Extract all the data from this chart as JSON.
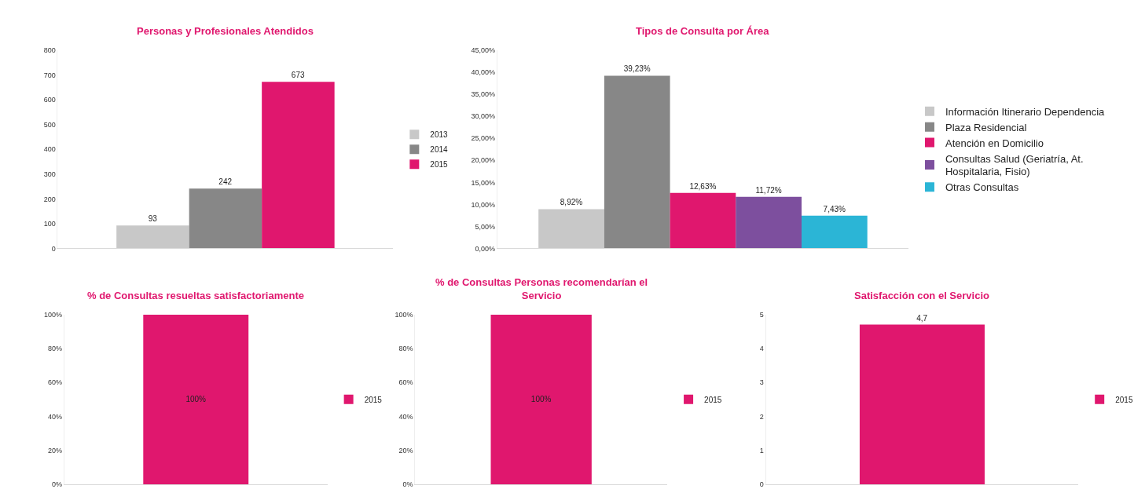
{
  "chart_data": [
    {
      "type": "bar",
      "title": "Personas y Profesionales Atendidos",
      "categories": [
        null
      ],
      "ylim": [
        0,
        800
      ],
      "yticks": [
        0,
        100,
        200,
        300,
        400,
        500,
        600,
        700,
        800
      ],
      "data_labels": true,
      "legend": "right",
      "grid": false,
      "series": [
        {
          "name": "2013",
          "color": "#c8c8c8",
          "values": [
            93
          ]
        },
        {
          "name": "2014",
          "color": "#878787",
          "values": [
            242
          ]
        },
        {
          "name": "2015",
          "color": "#e0176e",
          "values": [
            673
          ]
        }
      ]
    },
    {
      "type": "bar",
      "title": "Tipos de Consulta por Área",
      "categories": [
        null
      ],
      "ylim": [
        0,
        45
      ],
      "yticks": [
        {
          "value": 0,
          "label": "0,00%"
        },
        {
          "value": 5,
          "label": "5,00%"
        },
        {
          "value": 10,
          "label": "10,00%"
        },
        {
          "value": 15,
          "label": "15,00%"
        },
        {
          "value": 20,
          "label": "20,00%"
        },
        {
          "value": 25,
          "label": "25,00%"
        },
        {
          "value": 30,
          "label": "30,00%"
        },
        {
          "value": 35,
          "label": "35,00%"
        },
        {
          "value": 40,
          "label": "40,00%"
        },
        {
          "value": 45,
          "label": "45,00%"
        }
      ],
      "legend": "right",
      "grid": false,
      "series": [
        {
          "name": "Información Itinerario Dependencia",
          "color": "#c8c8c8",
          "values": [
            8.92
          ],
          "value_labels": [
            "8,92%"
          ]
        },
        {
          "name": "Plaza Residencial",
          "color": "#878787",
          "values": [
            39.23
          ],
          "value_labels": [
            "39,23%"
          ]
        },
        {
          "name": "Atención en Domicilio",
          "color": "#e0176e",
          "values": [
            12.63
          ],
          "value_labels": [
            "12,63%"
          ]
        },
        {
          "name": "Consultas Salud (Geriatría, At. Hospitalaria, Fisio)",
          "color": "#7d4f9e",
          "values": [
            11.72
          ],
          "value_labels": [
            "11,72%"
          ]
        },
        {
          "name": "Otras Consultas",
          "color": "#2bb5d6",
          "values": [
            7.43
          ],
          "value_labels": [
            "7,43%"
          ]
        }
      ]
    },
    {
      "type": "bar",
      "title": "% de Consultas resueltas satisfactoriamente",
      "categories": [
        null
      ],
      "ylim": [
        0,
        100
      ],
      "yticks": [
        {
          "value": 0,
          "label": "0%"
        },
        {
          "value": 20,
          "label": "20%"
        },
        {
          "value": 40,
          "label": "40%"
        },
        {
          "value": 60,
          "label": "60%"
        },
        {
          "value": 80,
          "label": "80%"
        },
        {
          "value": 100,
          "label": "100%"
        }
      ],
      "legend": "right",
      "grid": false,
      "series": [
        {
          "name": "2015",
          "color": "#e0176e",
          "values": [
            100
          ],
          "value_labels": [
            "100%"
          ]
        }
      ]
    },
    {
      "type": "bar",
      "title": "% de Consultas Personas recomendarían el Servicio",
      "categories": [
        null
      ],
      "ylim": [
        0,
        100
      ],
      "yticks": [
        {
          "value": 0,
          "label": "0%"
        },
        {
          "value": 20,
          "label": "20%"
        },
        {
          "value": 40,
          "label": "40%"
        },
        {
          "value": 60,
          "label": "60%"
        },
        {
          "value": 80,
          "label": "80%"
        },
        {
          "value": 100,
          "label": "100%"
        }
      ],
      "legend": "right",
      "grid": false,
      "series": [
        {
          "name": "2015",
          "color": "#e0176e",
          "values": [
            100
          ],
          "value_labels": [
            "100%"
          ]
        }
      ]
    },
    {
      "type": "bar",
      "title": "Satisfacción con el Servicio",
      "categories": [
        null
      ],
      "ylim": [
        0,
        5
      ],
      "yticks": [
        0,
        1,
        2,
        3,
        4,
        5
      ],
      "legend": "right",
      "grid": false,
      "series": [
        {
          "name": "2015",
          "color": "#e0176e",
          "values": [
            4.7
          ],
          "value_labels": [
            "4,7"
          ]
        }
      ]
    }
  ]
}
